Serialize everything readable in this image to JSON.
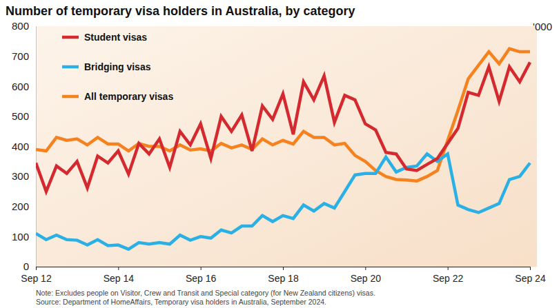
{
  "chart_data": {
    "type": "line",
    "title": "Number of temporary visa holders in Australia, by category",
    "y_label": "'000",
    "note": "Note: Excludes people on Visitor, Crew and Transit and Special category (for New Zealand citizens) visas.",
    "source": "Source: Department of HomeAffairs, Temporary visa holders in Australia, September 2024.",
    "categories": [
      "Sep 12",
      null,
      null,
      null,
      null,
      null,
      null,
      null,
      "Sep 14",
      null,
      null,
      null,
      null,
      null,
      null,
      null,
      "Sep 16",
      null,
      null,
      null,
      null,
      null,
      null,
      null,
      "Sep 18",
      null,
      null,
      null,
      null,
      null,
      null,
      null,
      "Sep 20",
      null,
      null,
      null,
      null,
      null,
      null,
      null,
      "Sep 22",
      null,
      null,
      null,
      null,
      null,
      null,
      null,
      "Sep 24"
    ],
    "ylim": [
      0,
      800
    ],
    "yticks": [
      0,
      100,
      200,
      300,
      400,
      500,
      600,
      700,
      800
    ],
    "legend": "top-left",
    "series": [
      {
        "name": "Student visas",
        "color": "#d42a2f",
        "values": [
          345,
          250,
          335,
          310,
          350,
          262,
          368,
          345,
          385,
          308,
          410,
          375,
          425,
          330,
          450,
          405,
          475,
          360,
          500,
          450,
          505,
          385,
          535,
          490,
          575,
          440,
          615,
          555,
          635,
          480,
          570,
          555,
          475,
          455,
          380,
          375,
          325,
          320,
          340,
          360,
          410,
          460,
          580,
          570,
          665,
          550,
          665,
          615,
          680
        ]
      },
      {
        "name": "Bridging visas",
        "color": "#2bb0e6",
        "values": [
          110,
          90,
          105,
          90,
          88,
          72,
          90,
          70,
          72,
          58,
          80,
          75,
          80,
          75,
          105,
          88,
          100,
          95,
          122,
          112,
          135,
          135,
          170,
          150,
          170,
          160,
          205,
          185,
          210,
          195,
          250,
          305,
          310,
          310,
          365,
          315,
          330,
          335,
          375,
          350,
          375,
          205,
          190,
          180,
          195,
          210,
          290,
          300,
          345
        ]
      },
      {
        "name": "All temporary visas",
        "color": "#f5821f",
        "values": [
          390,
          385,
          430,
          420,
          425,
          405,
          430,
          408,
          408,
          385,
          410,
          400,
          400,
          385,
          405,
          388,
          392,
          385,
          410,
          395,
          405,
          390,
          425,
          405,
          420,
          408,
          450,
          430,
          430,
          405,
          410,
          370,
          350,
          320,
          300,
          290,
          288,
          285,
          300,
          320,
          420,
          520,
          625,
          670,
          715,
          675,
          725,
          715,
          715
        ]
      }
    ]
  }
}
